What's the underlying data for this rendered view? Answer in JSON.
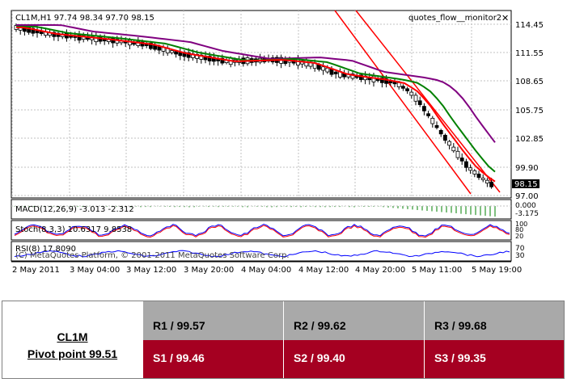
{
  "chart": {
    "header": "CL1M,H1  97.74 98.34 97.70 98.15",
    "indicator_name": "quotes_flow__monitor2",
    "close_icon": "close-icon",
    "price_labels": [
      "114.45",
      "111.55",
      "108.65",
      "105.75",
      "102.85",
      "99.90",
      "97.00"
    ],
    "current_price": "98.15",
    "macd": {
      "label": "MACD(12,26,9) -3.013 -2.312",
      "scale": [
        "0.000",
        "-3.175"
      ]
    },
    "stoch": {
      "label": "Stoch(8,3,3) 10.6317 9.8538",
      "scale": [
        "100",
        "80",
        "20"
      ]
    },
    "rsi": {
      "label": "RSI(8) 17.8090",
      "scale": [
        "70",
        "30"
      ]
    },
    "copyright": "(C) MetaQuotes Platform, © 2001-2011 MetaQuotes Software Corp.",
    "time_labels": [
      "2 May 2011",
      "3 May 04:00",
      "3 May 12:00",
      "3 May 20:00",
      "4 May 04:00",
      "4 May 12:00",
      "4 May 20:00",
      "5 May 11:00",
      "5 May 19:00"
    ],
    "colors": {
      "candle_up": "#ffffff",
      "candle_down": "#000000",
      "ma_fast": "#ff0000",
      "ma_mid": "#008000",
      "ma_slow": "#800080",
      "channel": "#ff0000",
      "macd_hist": "#008000",
      "stoch_main": "#0000ff",
      "stoch_signal": "#ff0000",
      "rsi_line": "#0000ff"
    }
  },
  "pivot_table": {
    "symbol": "CL1M",
    "pivot_label": "Pivot point 99.51",
    "resistance": [
      "R1 / 99.57",
      "R2  / 99.62",
      "R3 / 99.68"
    ],
    "support": [
      "S1 / 99.46",
      "S2 /  99.40",
      "S3 /  99.35"
    ],
    "colors": {
      "resistance_bg": "#a9a9a9",
      "support_bg": "#a50021"
    }
  }
}
